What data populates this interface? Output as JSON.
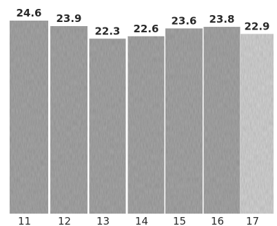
{
  "chart_data": {
    "type": "bar",
    "categories": [
      "11",
      "12",
      "13",
      "14",
      "15",
      "16",
      "17"
    ],
    "values": [
      24.6,
      23.9,
      22.3,
      22.6,
      23.6,
      23.8,
      22.9
    ],
    "data_labels": [
      "24.6",
      "23.9",
      "22.3",
      "22.6",
      "23.6",
      "23.8",
      "22.9"
    ],
    "title": "",
    "xlabel": "",
    "ylabel": "",
    "ylim": [
      0,
      26
    ],
    "grid": false,
    "legend": "none",
    "bar_color": "#a9a9a9",
    "light_bar_color": "#d6d6d6",
    "label_color": "#2a2a2a"
  }
}
